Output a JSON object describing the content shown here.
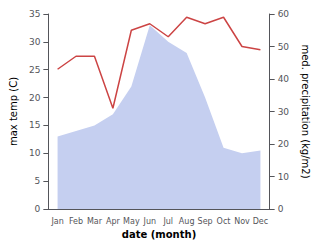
{
  "chart_data": {
    "type": "line",
    "xlabel": "date (month)",
    "ylabel": "max temp (C)",
    "y2label": "med. precipitation (kg/m2)",
    "categories": [
      "Jan",
      "Feb",
      "Mar",
      "Apr",
      "May",
      "Jun",
      "Jul",
      "Aug",
      "Sep",
      "Oct",
      "Nov",
      "Dec"
    ],
    "series": [
      {
        "type": "area",
        "color": "#c5cff0",
        "values": [
          13,
          14,
          15,
          17,
          22,
          33,
          30,
          28,
          20,
          11,
          10,
          10.5
        ]
      },
      {
        "type": "line",
        "color": "#cc4444",
        "axis": "y2",
        "values": [
          43,
          47,
          47,
          31,
          55,
          57,
          53,
          59,
          57,
          59,
          50,
          49
        ]
      }
    ],
    "ylim": [
      0,
      35
    ],
    "yticks": [
      0,
      5,
      10,
      15,
      20,
      25,
      30,
      35
    ],
    "y2lim": [
      0,
      60
    ],
    "y2ticks": [
      0,
      10,
      20,
      30,
      40,
      50,
      60
    ],
    "grid": false
  }
}
